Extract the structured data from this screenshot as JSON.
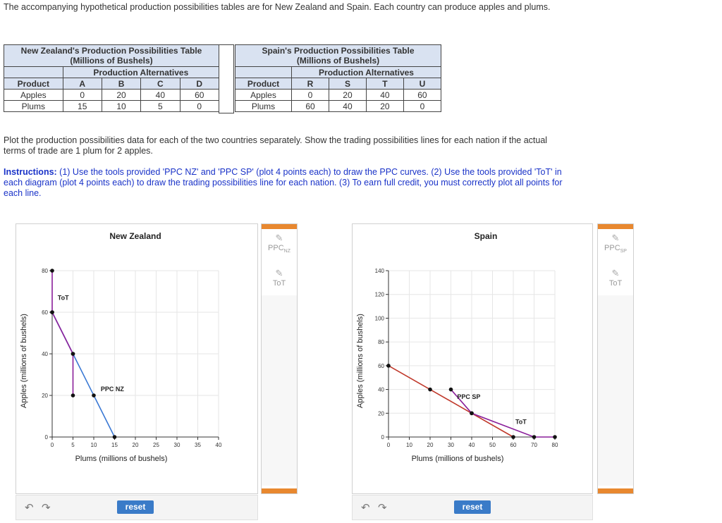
{
  "intro": "The accompanying hypothetical production possibilities tables are for New Zealand and Spain. Each country can produce apples and plums.",
  "nz_table": {
    "title1": "New Zealand's Production Possibilities Table",
    "title2": "(Millions of Bushels)",
    "alt_label": "Production Alternatives",
    "product_label": "Product",
    "cols": [
      "A",
      "B",
      "C",
      "D"
    ],
    "rows": [
      {
        "name": "Apples",
        "values": [
          "0",
          "20",
          "40",
          "60"
        ]
      },
      {
        "name": "Plums",
        "values": [
          "15",
          "10",
          "5",
          "0"
        ]
      }
    ]
  },
  "sp_table": {
    "title1": "Spain's Production Possibilities Table",
    "title2": "(Millions of Bushels)",
    "alt_label": "Production Alternatives",
    "product_label": "Product",
    "cols": [
      "R",
      "S",
      "T",
      "U"
    ],
    "rows": [
      {
        "name": "Apples",
        "values": [
          "0",
          "20",
          "40",
          "60"
        ]
      },
      {
        "name": "Plums",
        "values": [
          "60",
          "40",
          "20",
          "0"
        ]
      }
    ]
  },
  "plot_instruction": "Plot the production possibilities data for each of the two countries separately. Show the trading possibilities lines for each nation if the actual terms of trade are 1 plum for 2 apples.",
  "instructions_label": "Instructions:",
  "instructions_text": " (1) Use the tools provided 'PPC NZ' and 'PPC SP' (plot 4 points each) to draw the PPC curves. (2) Use the tools provided 'ToT' in each diagram (plot 4 points each) to draw the trading possibilities line for each nation. (3) To earn full credit, you must correctly plot all points for each line.",
  "nz_tools": {
    "ppc": "PPC",
    "ppc_sub": "NZ",
    "tot": "ToT"
  },
  "sp_tools": {
    "ppc": "PPC",
    "ppc_sub": "SP",
    "tot": "ToT"
  },
  "reset_label": "reset",
  "colors": {
    "ppc": "#3a78d4",
    "tot": "#8a1f9a",
    "ppc_sp": "#c0392b",
    "accent": "#e8882f",
    "button": "#3a7bc8"
  },
  "chart_data": [
    {
      "type": "line",
      "title": "New Zealand",
      "xlabel": "Plums (millions of bushels)",
      "ylabel": "Apples (millions of bushels)",
      "xlim": [
        0,
        40
      ],
      "ylim": [
        0,
        80
      ],
      "xticks": [
        0,
        5,
        10,
        15,
        20,
        25,
        30,
        35,
        40
      ],
      "yticks": [
        0,
        20,
        40,
        60,
        80
      ],
      "series": [
        {
          "name": "PPC NZ",
          "points": [
            [
              0,
              60
            ],
            [
              5,
              40
            ],
            [
              10,
              20
            ],
            [
              15,
              0
            ]
          ]
        },
        {
          "name": "ToT",
          "points": [
            [
              0,
              80
            ],
            [
              0,
              60
            ],
            [
              5,
              40
            ],
            [
              5,
              20
            ]
          ]
        }
      ]
    },
    {
      "type": "line",
      "title": "Spain",
      "xlabel": "Plums (millions of bushels)",
      "ylabel": "Apples (millions of bushels)",
      "xlim": [
        0,
        80
      ],
      "ylim": [
        0,
        140
      ],
      "xticks": [
        0,
        10,
        20,
        30,
        40,
        50,
        60,
        70,
        80
      ],
      "yticks": [
        0,
        20,
        40,
        60,
        80,
        100,
        120,
        140
      ],
      "series": [
        {
          "name": "PPC SP",
          "points": [
            [
              0,
              60
            ],
            [
              20,
              40
            ],
            [
              40,
              20
            ],
            [
              60,
              0
            ]
          ]
        },
        {
          "name": "ToT",
          "points": [
            [
              30,
              40
            ],
            [
              40,
              20
            ],
            [
              70,
              0
            ],
            [
              80,
              0
            ]
          ]
        }
      ]
    }
  ]
}
